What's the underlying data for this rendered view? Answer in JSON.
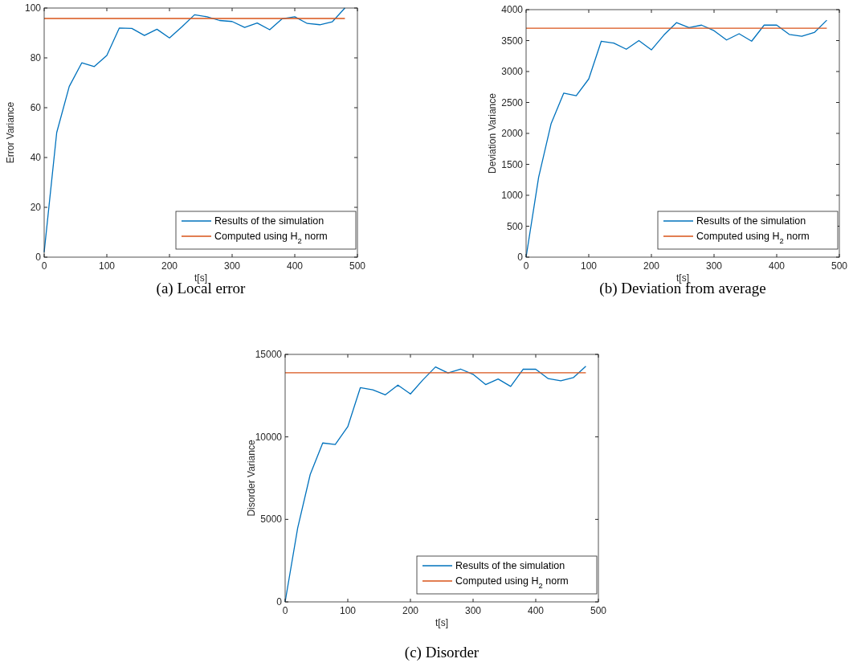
{
  "chart_data": [
    {
      "type": "line",
      "title": "(a) Local error",
      "xlabel": "t[s]",
      "ylabel": "Error Variance",
      "xlim": [
        0,
        500
      ],
      "xticks": [
        0,
        100,
        200,
        300,
        400,
        500
      ],
      "ylim": [
        0,
        100
      ],
      "yticks": [
        0,
        20,
        40,
        60,
        80,
        100
      ],
      "legend": "bottom right",
      "grid": false,
      "series": [
        {
          "name": "Results of the simulation",
          "color": "#0072bd",
          "x": [
            0,
            20,
            40,
            60,
            80,
            100,
            120,
            140,
            160,
            180,
            200,
            220,
            240,
            260,
            280,
            300,
            320,
            340,
            360,
            380,
            400,
            420,
            440,
            460,
            480
          ],
          "values": [
            2,
            50,
            68.5,
            78,
            76.5,
            81,
            92,
            91.8,
            89,
            91.5,
            88,
            92.5,
            97.3,
            96.5,
            95,
            94.6,
            92.2,
            94,
            91.3,
            95.7,
            96.5,
            93.8,
            93.3,
            94.5,
            100
          ]
        },
        {
          "name": "Computed using H$_{2}$ norm",
          "color": "#d95319",
          "x": [
            0,
            480
          ],
          "values": [
            95.8,
            95.8
          ]
        }
      ]
    },
    {
      "type": "line",
      "title": "(b) Deviation from average",
      "xlabel": "t[s]",
      "ylabel": "Deviation Variance",
      "xlim": [
        0,
        500
      ],
      "xticks": [
        0,
        100,
        200,
        300,
        400,
        500
      ],
      "ylim": [
        0,
        4000
      ],
      "yticks": [
        0,
        500,
        1000,
        1500,
        2000,
        2500,
        3000,
        3500,
        4000
      ],
      "legend": "bottom right",
      "grid": false,
      "series": [
        {
          "name": "Results of the simulation",
          "color": "#0072bd",
          "x": [
            0,
            20,
            40,
            60,
            80,
            100,
            120,
            140,
            160,
            180,
            200,
            220,
            240,
            260,
            280,
            300,
            320,
            340,
            360,
            380,
            400,
            420,
            440,
            460,
            480
          ],
          "values": [
            0,
            1290,
            2160,
            2650,
            2610,
            2880,
            3490,
            3460,
            3360,
            3500,
            3350,
            3590,
            3790,
            3710,
            3750,
            3660,
            3510,
            3610,
            3490,
            3750,
            3750,
            3600,
            3570,
            3630,
            3830
          ]
        },
        {
          "name": "Computed using H$_{2}$ norm",
          "color": "#d95319",
          "x": [
            0,
            480
          ],
          "values": [
            3700,
            3700
          ]
        }
      ]
    },
    {
      "type": "line",
      "title": "(c) Disorder",
      "xlabel": "t[s]",
      "ylabel": "Disorder Variance",
      "xlim": [
        0,
        500
      ],
      "xticks": [
        0,
        100,
        200,
        300,
        400,
        500
      ],
      "ylim": [
        0,
        15000
      ],
      "yticks": [
        0,
        5000,
        10000,
        15000
      ],
      "legend": "bottom right",
      "grid": false,
      "series": [
        {
          "name": "Results of the simulation",
          "color": "#0072bd",
          "x": [
            0,
            20,
            40,
            60,
            80,
            100,
            120,
            140,
            160,
            180,
            200,
            220,
            240,
            260,
            280,
            300,
            320,
            340,
            360,
            380,
            400,
            420,
            440,
            460,
            480
          ],
          "values": [
            0,
            4470,
            7720,
            9630,
            9540,
            10620,
            12980,
            12850,
            12550,
            13140,
            12600,
            13460,
            14240,
            13870,
            14110,
            13790,
            13170,
            13510,
            13060,
            14110,
            14100,
            13530,
            13400,
            13590,
            14280
          ]
        },
        {
          "name": "Computed using H$_{2}$ norm",
          "color": "#d95319",
          "x": [
            0,
            480
          ],
          "values": [
            13890,
            13890
          ]
        }
      ]
    }
  ]
}
